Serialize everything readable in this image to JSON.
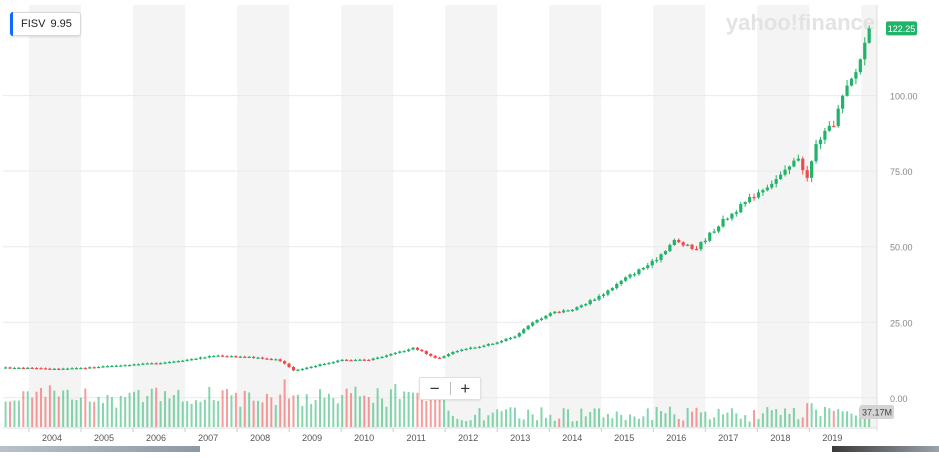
{
  "ticker": {
    "symbol": "FISV",
    "value": "9.95"
  },
  "watermark": "yahoo!finance",
  "price_badge": {
    "label": "122.25",
    "color": "#21b36a"
  },
  "volume_badge": "37.17M",
  "zoom": {
    "minus": "−",
    "plus": "+"
  },
  "colors": {
    "up": "#21b36a",
    "down": "#f04a4a",
    "band": "#f4f4f4",
    "grid": "#e9e9e9",
    "axis_text": "#888888"
  },
  "chart_data": {
    "type": "candlestick",
    "title": "",
    "xlabel": "",
    "ylabel": "",
    "x_ticks": [
      "2004",
      "2005",
      "2006",
      "2007",
      "2008",
      "2009",
      "2010",
      "2011",
      "2012",
      "2013",
      "2014",
      "2015",
      "2016",
      "2017",
      "2018",
      "2019"
    ],
    "y_ticks": [
      "0.00",
      "25.00",
      "50.00",
      "75.00",
      "100.00"
    ],
    "ylim": [
      -10,
      130
    ],
    "x_range": [
      2003.5,
      2020.3
    ],
    "last_price": 122.25,
    "volume_last": "37.17M",
    "grid": true,
    "price_anchors": [
      [
        2003.55,
        9.95
      ],
      [
        2004.0,
        10.0
      ],
      [
        2004.5,
        9.5
      ],
      [
        2005.0,
        9.8
      ],
      [
        2005.5,
        10.5
      ],
      [
        2006.0,
        11.0
      ],
      [
        2006.5,
        11.5
      ],
      [
        2007.0,
        12.5
      ],
      [
        2007.6,
        14.0
      ],
      [
        2008.2,
        13.5
      ],
      [
        2008.8,
        12.5
      ],
      [
        2009.1,
        9.0
      ],
      [
        2009.6,
        11.0
      ],
      [
        2010.0,
        12.5
      ],
      [
        2010.5,
        12.5
      ],
      [
        2011.0,
        14.5
      ],
      [
        2011.4,
        16.5
      ],
      [
        2011.65,
        14.5
      ],
      [
        2011.85,
        13.0
      ],
      [
        2012.3,
        16.0
      ],
      [
        2012.8,
        17.5
      ],
      [
        2013.3,
        20.0
      ],
      [
        2013.7,
        25.0
      ],
      [
        2014.0,
        28.0
      ],
      [
        2014.5,
        29.5
      ],
      [
        2015.0,
        34.0
      ],
      [
        2015.5,
        40.0
      ],
      [
        2016.0,
        45.0
      ],
      [
        2016.4,
        52.0
      ],
      [
        2016.8,
        49.0
      ],
      [
        2017.3,
        58.0
      ],
      [
        2017.8,
        65.0
      ],
      [
        2018.0,
        68.0
      ],
      [
        2018.5,
        74.0
      ],
      [
        2018.8,
        80.0
      ],
      [
        2018.95,
        72.0
      ],
      [
        2019.15,
        85.0
      ],
      [
        2019.45,
        90.0
      ],
      [
        2019.65,
        100.0
      ],
      [
        2019.9,
        108.0
      ],
      [
        2020.15,
        122.25
      ]
    ],
    "volume_spikes": [
      [
        2003.6,
        15
      ],
      [
        2004.25,
        23
      ],
      [
        2008.9,
        28
      ],
      [
        2009.2,
        19
      ],
      [
        2010.35,
        18
      ],
      [
        2019.0,
        14
      ],
      [
        2019.4,
        11
      ]
    ]
  }
}
